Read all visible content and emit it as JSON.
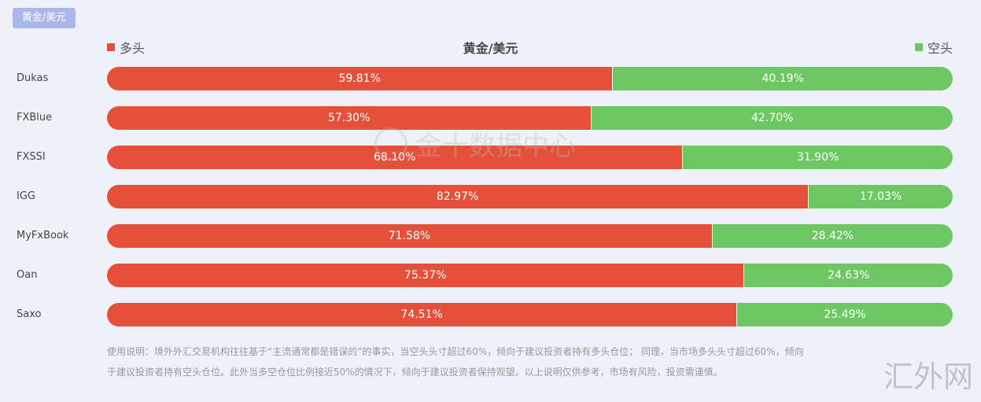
{
  "tab": {
    "label": "黄金/美元"
  },
  "chart_data": {
    "type": "bar",
    "title": "黄金/美元",
    "categories": [
      "Dukas",
      "FXBlue",
      "FXSSI",
      "IGG",
      "MyFxBook",
      "Oan",
      "Saxo"
    ],
    "series": [
      {
        "name": "多头",
        "color": "#e5503a",
        "values": [
          59.81,
          57.3,
          68.1,
          82.97,
          71.58,
          75.37,
          74.51
        ]
      },
      {
        "name": "空头",
        "color": "#6dc864",
        "values": [
          40.19,
          42.7,
          31.9,
          17.03,
          28.42,
          24.63,
          25.49
        ]
      }
    ],
    "value_format": "percent",
    "stacked": true,
    "orientation": "horizontal",
    "legend_placement": "top"
  },
  "note": {
    "line1": "使用说明：境外外汇交易机构往往基于“主流通常都是错误的”的事实，当空头头寸超过60%，倾向于建议投资者持有多头仓位；  同理，当市场多头头寸超过60%，倾向",
    "line2": "于建议投资者持有空头仓位。此外当多空仓位比例接近50%的情况下，倾向于建议投资者保持观望。以上说明仅供参考，市场有风险，投资需谨慎。"
  },
  "watermark": {
    "center_text": "金十数据中心",
    "corner_text": "汇外网"
  }
}
